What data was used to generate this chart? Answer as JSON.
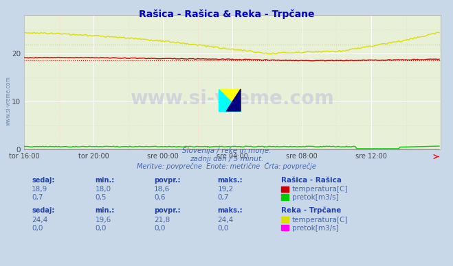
{
  "title": "Rašica - Rašica & Reka - Trpčane",
  "title_color": "#0000cc",
  "bg_color": "#c8d8e8",
  "plot_bg_color": "#e8f0d8",
  "xlabel_ticks": [
    "tor 16:00",
    "tor 20:00",
    "sre 00:00",
    "sre 04:00",
    "sre 08:00",
    "sre 12:00"
  ],
  "xlim": [
    0,
    288
  ],
  "ylim": [
    0,
    28
  ],
  "yticks": [
    0,
    10,
    20
  ],
  "rasica_temp_color": "#cc0000",
  "rasica_pretok_color": "#00cc00",
  "trpcane_temp_color": "#dddd00",
  "trpcane_pretok_color": "#ff00ff",
  "avg_rasica_temp": 18.6,
  "avg_trpcane_temp": 21.8,
  "watermark_text": "www.si-vreme.com",
  "subtitle1": "Slovenija / reke in morje.",
  "subtitle2": "zadnji dan / 5 minut.",
  "subtitle3": "Meritve: povprečne  Enote: metrične  Črta: povprečje",
  "text_color": "#4466aa",
  "label_color": "#2244aa",
  "tick_color": "#444444",
  "grid_major_color": "#ffffff",
  "grid_minor_color": "#ffcccc",
  "spine_color": "#aaaaaa",
  "watermark_color": "#bbbbdd",
  "watermark_alpha": 0.5
}
